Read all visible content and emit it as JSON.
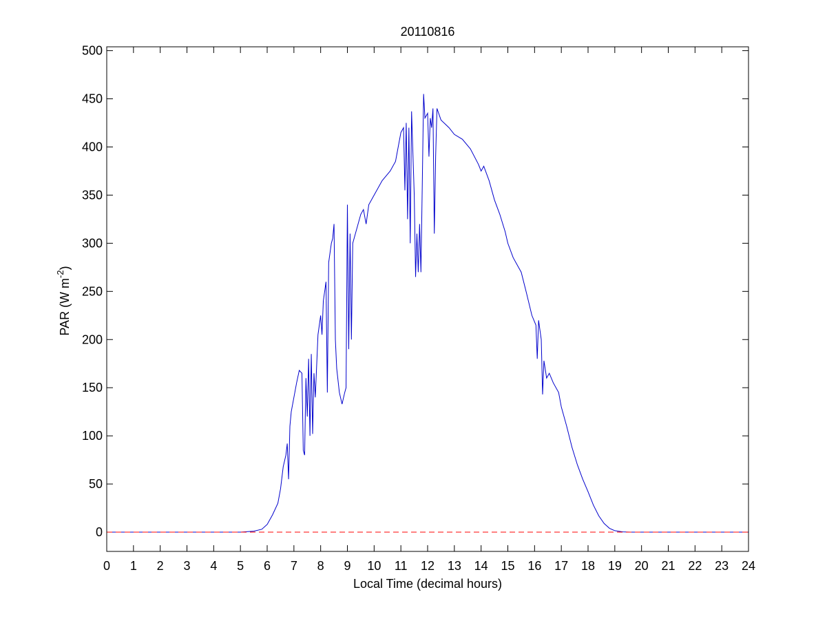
{
  "chart_data": {
    "type": "line",
    "title": "20110816",
    "xlabel": "Local Time (decimal hours)",
    "ylabel_parts": [
      "PAR (W m",
      "-2",
      ")"
    ],
    "xlim": [
      0,
      24
    ],
    "ylim": [
      -20,
      504
    ],
    "xticks": [
      0,
      1,
      2,
      3,
      4,
      5,
      6,
      7,
      8,
      9,
      10,
      11,
      12,
      13,
      14,
      15,
      16,
      17,
      18,
      19,
      20,
      21,
      22,
      23,
      24
    ],
    "yticks": [
      0,
      50,
      100,
      150,
      200,
      250,
      300,
      350,
      400,
      450,
      500
    ],
    "grid": false,
    "series": [
      {
        "color": "#0000cc",
        "dash": false,
        "x": [
          0,
          5,
          5.5,
          5.8,
          6.0,
          6.2,
          6.4,
          6.5,
          6.6,
          6.7,
          6.75,
          6.8,
          6.85,
          6.9,
          7.0,
          7.1,
          7.2,
          7.3,
          7.35,
          7.4,
          7.45,
          7.5,
          7.55,
          7.6,
          7.65,
          7.7,
          7.75,
          7.8,
          7.9,
          8.0,
          8.05,
          8.1,
          8.2,
          8.25,
          8.3,
          8.4,
          8.45,
          8.5,
          8.55,
          8.6,
          8.7,
          8.8,
          8.9,
          8.95,
          9.0,
          9.05,
          9.1,
          9.15,
          9.2,
          9.3,
          9.4,
          9.5,
          9.6,
          9.7,
          9.8,
          10.0,
          10.3,
          10.6,
          10.8,
          10.9,
          11.0,
          11.1,
          11.15,
          11.2,
          11.25,
          11.3,
          11.35,
          11.4,
          11.5,
          11.55,
          11.6,
          11.65,
          11.7,
          11.75,
          11.8,
          11.85,
          11.9,
          12.0,
          12.05,
          12.1,
          12.15,
          12.2,
          12.25,
          12.3,
          12.35,
          12.5,
          12.8,
          13.0,
          13.3,
          13.6,
          13.9,
          14.0,
          14.1,
          14.3,
          14.5,
          14.7,
          14.9,
          15.0,
          15.2,
          15.4,
          15.5,
          15.7,
          15.9,
          16.05,
          16.1,
          16.15,
          16.25,
          16.3,
          16.35,
          16.45,
          16.55,
          16.7,
          16.9,
          17.0,
          17.2,
          17.4,
          17.6,
          17.8,
          18.0,
          18.2,
          18.4,
          18.6,
          18.8,
          19.0,
          19.3,
          19.6,
          24
        ],
        "values": [
          0,
          0,
          1,
          3,
          8,
          18,
          30,
          45,
          68,
          80,
          92,
          55,
          110,
          125,
          140,
          155,
          168,
          165,
          85,
          80,
          160,
          120,
          180,
          100,
          185,
          102,
          165,
          140,
          205,
          225,
          205,
          240,
          260,
          145,
          280,
          300,
          305,
          320,
          200,
          170,
          145,
          133,
          145,
          150,
          340,
          190,
          310,
          200,
          300,
          310,
          320,
          330,
          335,
          320,
          340,
          350,
          365,
          375,
          385,
          400,
          415,
          420,
          355,
          425,
          325,
          420,
          300,
          437,
          350,
          265,
          310,
          270,
          320,
          270,
          360,
          455,
          430,
          435,
          390,
          430,
          420,
          440,
          310,
          390,
          440,
          428,
          420,
          413,
          408,
          398,
          382,
          375,
          380,
          365,
          345,
          330,
          312,
          300,
          285,
          275,
          270,
          248,
          225,
          215,
          180,
          220,
          200,
          143,
          178,
          160,
          165,
          155,
          145,
          130,
          110,
          88,
          70,
          55,
          42,
          28,
          17,
          9,
          4,
          1.5,
          0.3,
          0,
          0
        ]
      },
      {
        "color": "#ff0000",
        "dash": true,
        "x": [
          0,
          24
        ],
        "values": [
          0,
          0
        ]
      }
    ]
  }
}
